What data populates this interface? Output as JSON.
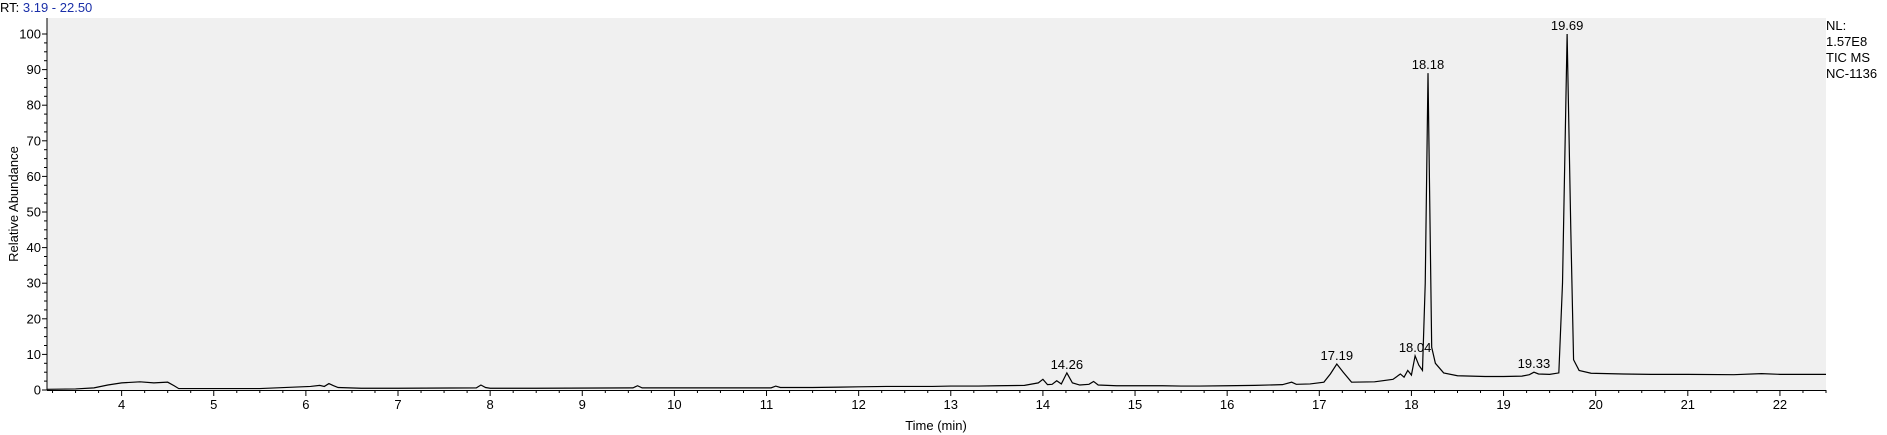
{
  "header": {
    "rt_key": "RT:",
    "rt_range": "3.19 - 22.50"
  },
  "info_box": {
    "nl_label": "NL:",
    "nl_value": "1.57E8",
    "scan_type": "TIC  MS",
    "sample_id": "NC-1136"
  },
  "colors": {
    "plot_background": "#f0f0f0",
    "trace": "#000000",
    "rt_value_text": "#1a2fa8"
  },
  "chart_data": {
    "type": "line",
    "xlabel": "Time (min)",
    "ylabel": "Relative Abundance",
    "xlim": [
      3.19,
      22.5
    ],
    "ylim": [
      0,
      102
    ],
    "xticks": [
      "4",
      "5",
      "6",
      "7",
      "8",
      "9",
      "10",
      "11",
      "12",
      "13",
      "14",
      "15",
      "16",
      "17",
      "18",
      "19",
      "20",
      "21",
      "22"
    ],
    "yticks": [
      "0",
      "10",
      "20",
      "30",
      "40",
      "50",
      "60",
      "70",
      "80",
      "90",
      "100"
    ],
    "grid": false,
    "series": [
      {
        "x": [
          3.19,
          3.5,
          3.7,
          3.85,
          4.0,
          4.2,
          4.35,
          4.5,
          4.57,
          4.62,
          5.0,
          5.5,
          6.05,
          6.15,
          6.2,
          6.25,
          6.3,
          6.35,
          6.6,
          7.0,
          7.85,
          7.9,
          7.95,
          8.0,
          8.5,
          9.55,
          9.6,
          9.65,
          10.0,
          10.5,
          11.05,
          11.1,
          11.15,
          11.5,
          11.8,
          12.0,
          12.3,
          12.5,
          12.8,
          13.0,
          13.3,
          13.5,
          13.8,
          13.95,
          14.0,
          14.05,
          14.1,
          14.15,
          14.2,
          14.26,
          14.32,
          14.4,
          14.5,
          14.55,
          14.6,
          14.8,
          15.0,
          15.3,
          15.5,
          15.7,
          16.0,
          16.3,
          16.6,
          16.7,
          16.75,
          16.9,
          17.05,
          17.12,
          17.19,
          17.26,
          17.35,
          17.6,
          17.8,
          17.88,
          17.92,
          17.96,
          18.0,
          18.04,
          18.08,
          18.12,
          18.15,
          18.18,
          18.22,
          18.26,
          18.35,
          18.5,
          18.8,
          19.0,
          19.2,
          19.28,
          19.33,
          19.38,
          19.5,
          19.6,
          19.64,
          19.69,
          19.73,
          19.76,
          19.82,
          19.95,
          20.3,
          20.6,
          21.0,
          21.5,
          21.8,
          22.0,
          22.5
        ],
        "y": [
          0.2,
          0.3,
          0.6,
          1.4,
          2.0,
          2.3,
          2.0,
          2.2,
          1.2,
          0.4,
          0.4,
          0.4,
          1.0,
          1.3,
          1.0,
          1.8,
          1.2,
          0.7,
          0.5,
          0.5,
          0.6,
          1.4,
          0.7,
          0.5,
          0.5,
          0.6,
          1.2,
          0.6,
          0.6,
          0.6,
          0.6,
          1.1,
          0.7,
          0.7,
          0.8,
          0.9,
          1.0,
          1.0,
          1.0,
          1.1,
          1.1,
          1.2,
          1.3,
          2.0,
          3.0,
          1.5,
          1.6,
          2.6,
          1.7,
          4.8,
          2.0,
          1.4,
          1.6,
          2.4,
          1.4,
          1.2,
          1.2,
          1.2,
          1.1,
          1.1,
          1.2,
          1.3,
          1.5,
          2.2,
          1.6,
          1.7,
          2.2,
          4.5,
          7.3,
          5.0,
          2.2,
          2.3,
          3.0,
          4.5,
          3.6,
          5.5,
          4.2,
          9.6,
          7.0,
          5.5,
          30.0,
          89.0,
          12.0,
          7.5,
          4.8,
          4.0,
          3.8,
          3.8,
          3.9,
          4.3,
          5.0,
          4.5,
          4.4,
          4.8,
          30.0,
          100.0,
          45.0,
          8.5,
          5.5,
          4.7,
          4.5,
          4.4,
          4.4,
          4.3,
          4.6,
          4.4,
          4.4
        ]
      }
    ],
    "peak_labels": [
      {
        "x": 14.26,
        "y": 4.8,
        "label": "14.26"
      },
      {
        "x": 17.19,
        "y": 7.3,
        "label": "17.19"
      },
      {
        "x": 18.04,
        "y": 9.6,
        "label": "18.04"
      },
      {
        "x": 18.18,
        "y": 89.0,
        "label": "18.18"
      },
      {
        "x": 19.33,
        "y": 5.0,
        "label": "19.33"
      },
      {
        "x": 19.69,
        "y": 100.0,
        "label": "19.69"
      }
    ]
  }
}
